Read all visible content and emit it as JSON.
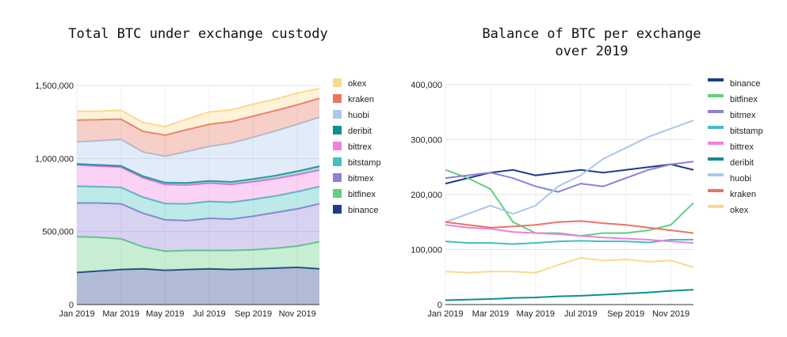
{
  "chart_data": [
    {
      "type": "area",
      "stacked": true,
      "title": "Total BTC under exchange custody",
      "xlabel": "",
      "ylabel": "",
      "x_tick_labels": [
        "Jan 2019",
        "Mar 2019",
        "May 2019",
        "Jul 2019",
        "Sep 2019",
        "Nov 2019"
      ],
      "y_tick_labels": [
        "0",
        "500,000",
        "1,000,000",
        "1,500,000"
      ],
      "ylim": [
        0,
        1500000
      ],
      "grid": true,
      "legend_position": "right",
      "x_months": [
        0,
        1,
        2,
        3,
        4,
        5,
        6,
        7,
        8,
        9,
        10,
        11
      ],
      "series": [
        {
          "name": "binance",
          "color": "#1f3c88",
          "values": [
            220000,
            230000,
            240000,
            245000,
            235000,
            240000,
            245000,
            240000,
            245000,
            250000,
            255000,
            245000
          ]
        },
        {
          "name": "bitfinex",
          "color": "#5fcf80",
          "values": [
            245000,
            230000,
            210000,
            150000,
            130000,
            130000,
            125000,
            130000,
            130000,
            135000,
            145000,
            185000
          ]
        },
        {
          "name": "bitmex",
          "color": "#8e7fd8",
          "values": [
            230000,
            235000,
            240000,
            230000,
            215000,
            205000,
            220000,
            215000,
            230000,
            245000,
            255000,
            260000
          ]
        },
        {
          "name": "bitstamp",
          "color": "#41c0c0",
          "values": [
            115000,
            112000,
            112000,
            110000,
            112000,
            115000,
            116000,
            115000,
            115000,
            113000,
            118000,
            118000
          ]
        },
        {
          "name": "bittrex",
          "color": "#f07fe0",
          "values": [
            145000,
            140000,
            138000,
            132000,
            130000,
            128000,
            125000,
            122000,
            120000,
            118000,
            115000,
            112000
          ]
        },
        {
          "name": "deribit",
          "color": "#0e8f8f",
          "values": [
            8000,
            9000,
            10000,
            12000,
            13000,
            15000,
            16000,
            18000,
            20000,
            22000,
            25000,
            27000
          ]
        },
        {
          "name": "huobi",
          "color": "#a9c8ec",
          "values": [
            150000,
            165000,
            180000,
            165000,
            180000,
            215000,
            235000,
            265000,
            285000,
            305000,
            320000,
            335000
          ]
        },
        {
          "name": "kraken",
          "color": "#e87565",
          "values": [
            150000,
            145000,
            140000,
            142000,
            145000,
            150000,
            152000,
            148000,
            145000,
            140000,
            135000,
            130000
          ]
        },
        {
          "name": "okex",
          "color": "#fbd98f",
          "values": [
            60000,
            58000,
            60000,
            60000,
            58000,
            72000,
            85000,
            80000,
            82000,
            78000,
            80000,
            68000
          ]
        }
      ]
    },
    {
      "type": "line",
      "title": "Balance of BTC per exchange\nover 2019",
      "xlabel": "",
      "ylabel": "",
      "x_tick_labels": [
        "Jan 2019",
        "Mar 2019",
        "May 2019",
        "Jul 2019",
        "Sep 2019",
        "Nov 2019"
      ],
      "y_tick_labels": [
        "0",
        "100,000",
        "200,000",
        "300,000",
        "400,000"
      ],
      "ylim": [
        0,
        400000
      ],
      "grid": true,
      "legend_position": "right",
      "x_months": [
        0,
        1,
        2,
        3,
        4,
        5,
        6,
        7,
        8,
        9,
        10,
        11
      ],
      "series": [
        {
          "name": "binance",
          "color": "#1f3c88",
          "values": [
            220000,
            230000,
            240000,
            245000,
            235000,
            240000,
            245000,
            240000,
            245000,
            250000,
            255000,
            245000
          ]
        },
        {
          "name": "bitfinex",
          "color": "#5fcf80",
          "values": [
            245000,
            230000,
            210000,
            150000,
            130000,
            130000,
            125000,
            130000,
            130000,
            135000,
            145000,
            185000
          ]
        },
        {
          "name": "bitmex",
          "color": "#8e7fd8",
          "values": [
            230000,
            235000,
            240000,
            230000,
            215000,
            205000,
            220000,
            215000,
            230000,
            245000,
            255000,
            260000
          ]
        },
        {
          "name": "bitstamp",
          "color": "#41c0c0",
          "values": [
            115000,
            112000,
            112000,
            110000,
            112000,
            115000,
            116000,
            115000,
            115000,
            113000,
            118000,
            118000
          ]
        },
        {
          "name": "bittrex",
          "color": "#f07fe0",
          "values": [
            145000,
            140000,
            138000,
            132000,
            130000,
            128000,
            125000,
            122000,
            120000,
            118000,
            115000,
            112000
          ]
        },
        {
          "name": "deribit",
          "color": "#0e8f8f",
          "values": [
            8000,
            9000,
            10000,
            12000,
            13000,
            15000,
            16000,
            18000,
            20000,
            22000,
            25000,
            27000
          ]
        },
        {
          "name": "huobi",
          "color": "#a9c8ec",
          "values": [
            150000,
            165000,
            180000,
            165000,
            180000,
            215000,
            235000,
            265000,
            285000,
            305000,
            320000,
            335000
          ]
        },
        {
          "name": "kraken",
          "color": "#e87565",
          "values": [
            150000,
            145000,
            140000,
            142000,
            145000,
            150000,
            152000,
            148000,
            145000,
            140000,
            135000,
            130000
          ]
        },
        {
          "name": "okex",
          "color": "#fbd98f",
          "values": [
            60000,
            58000,
            60000,
            60000,
            58000,
            72000,
            85000,
            80000,
            82000,
            78000,
            80000,
            68000
          ]
        }
      ]
    }
  ]
}
